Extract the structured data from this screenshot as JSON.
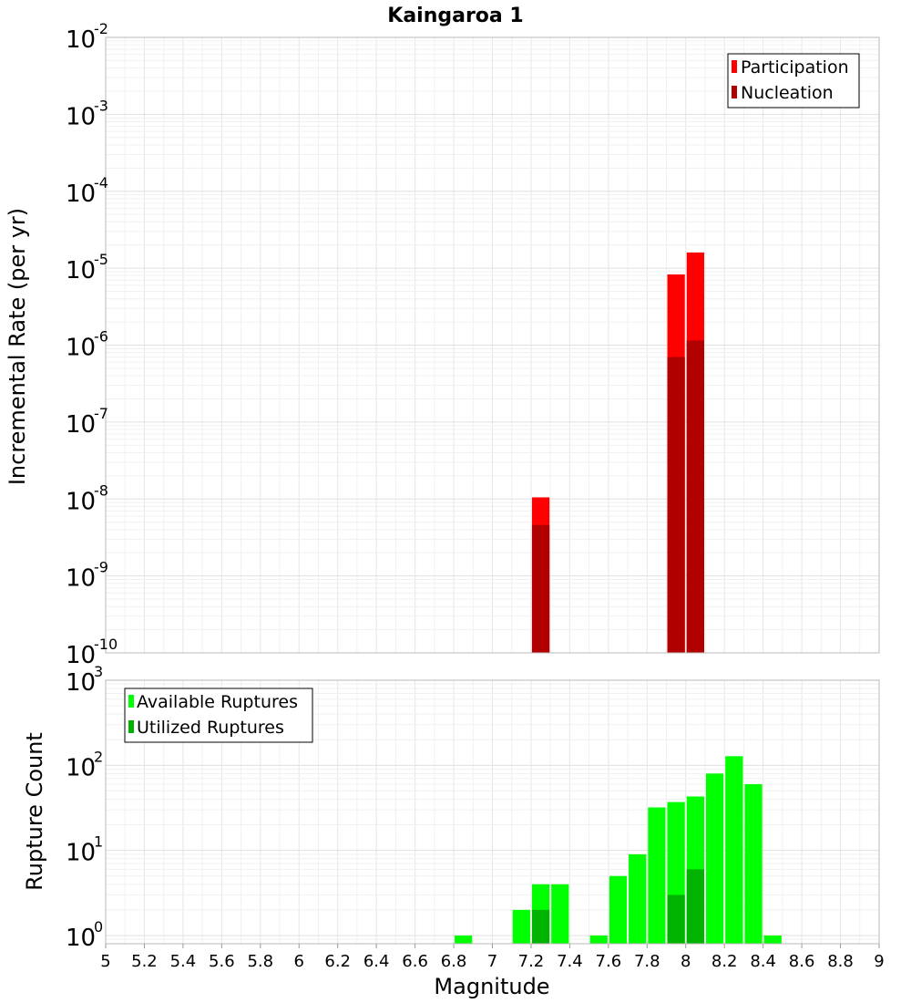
{
  "title": "Kaingaroa 1",
  "x_axis": {
    "label": "Magnitude",
    "range": [
      5,
      9
    ],
    "ticks": [
      "5",
      "5.2",
      "5.4",
      "5.6",
      "5.8",
      "6",
      "6.2",
      "6.4",
      "6.6",
      "6.8",
      "7",
      "7.2",
      "7.4",
      "7.6",
      "7.8",
      "8",
      "8.2",
      "8.4",
      "8.6",
      "8.8",
      "9"
    ]
  },
  "chart_data": [
    {
      "type": "bar",
      "panel": "top",
      "ylabel": "Incremental Rate (per yr)",
      "yscale": "log",
      "ylim": [
        1e-10,
        0.01
      ],
      "y_tick_exponents": [
        "-2",
        "-3",
        "-4",
        "-5",
        "-6",
        "-7",
        "-8",
        "-9",
        "-10"
      ],
      "grid": true,
      "legend": {
        "placement": "top-right",
        "entries": [
          "Participation",
          "Nucleation"
        ]
      },
      "colors": {
        "Participation": "#ff0000",
        "Nucleation": "#b00000"
      },
      "bin_width": 0.1,
      "series": [
        {
          "name": "Participation",
          "x": [
            7.25,
            7.95,
            8.05
          ],
          "values": [
            1.05e-08,
            8.3e-06,
            1.6e-05
          ]
        },
        {
          "name": "Nucleation",
          "x": [
            7.25,
            7.95,
            8.05
          ],
          "values": [
            4.6e-09,
            7e-07,
            1.15e-06
          ]
        }
      ]
    },
    {
      "type": "bar",
      "panel": "bottom",
      "ylabel": "Rupture Count",
      "yscale": "log",
      "ylim": [
        0.8,
        1000
      ],
      "y_tick_exponents": [
        "3",
        "2",
        "1",
        "0"
      ],
      "grid": true,
      "legend": {
        "placement": "top-left",
        "entries": [
          "Available Ruptures",
          "Utilized Ruptures"
        ]
      },
      "colors": {
        "Available Ruptures": "#00ff00",
        "Utilized Ruptures": "#00b300"
      },
      "bin_width": 0.1,
      "series": [
        {
          "name": "Available Ruptures",
          "x": [
            6.85,
            7.15,
            7.25,
            7.35,
            7.55,
            7.65,
            7.75,
            7.85,
            7.95,
            8.05,
            8.15,
            8.25,
            8.35,
            8.45
          ],
          "values": [
            1,
            2,
            4,
            4,
            1,
            5,
            9,
            32,
            37,
            43,
            80,
            128,
            60,
            1
          ]
        },
        {
          "name": "Utilized Ruptures",
          "x": [
            7.25,
            7.95,
            8.05
          ],
          "values": [
            2,
            3,
            6
          ]
        }
      ]
    }
  ]
}
